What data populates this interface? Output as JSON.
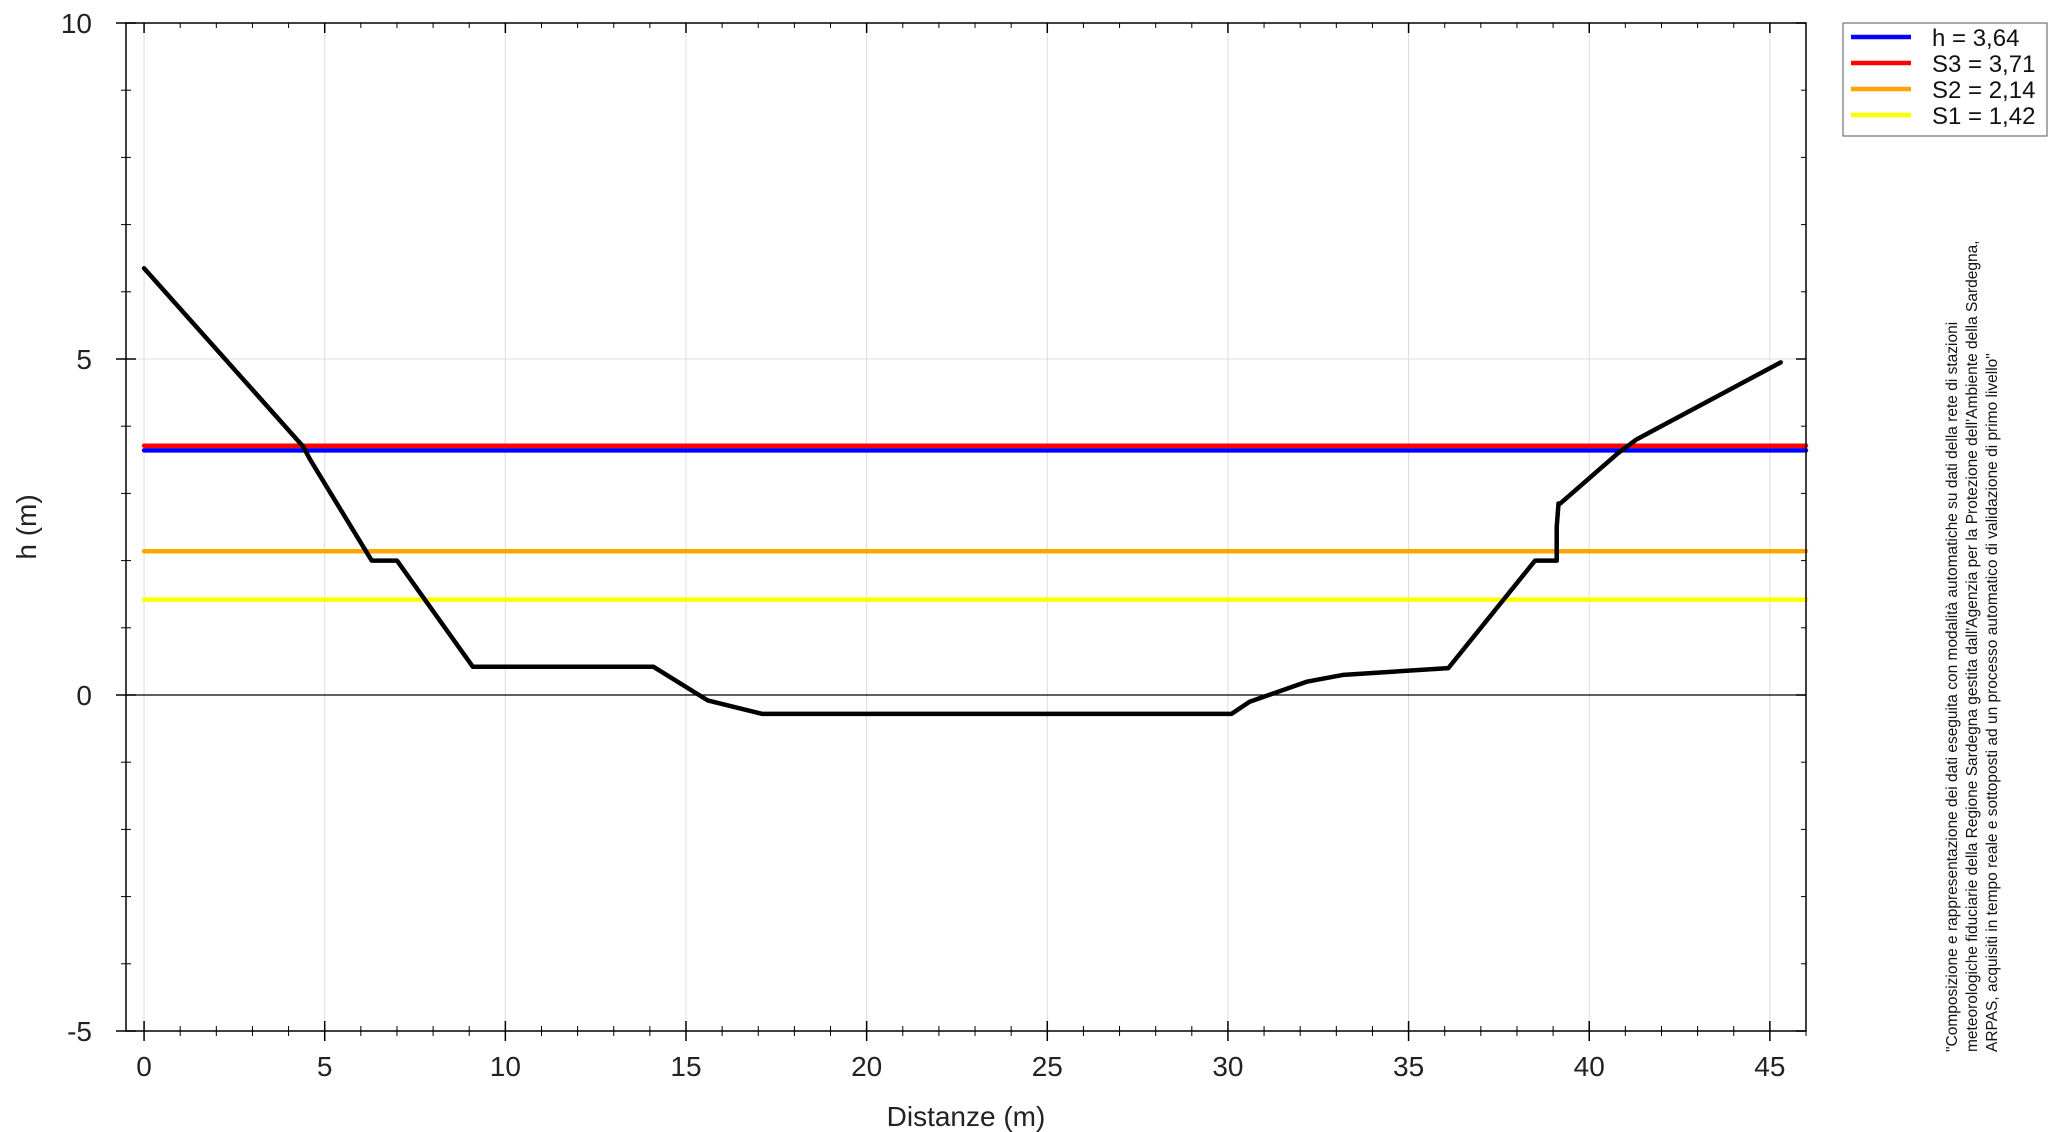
{
  "chart_data": {
    "type": "line",
    "title": "",
    "xlabel": "Distanze (m)",
    "ylabel": "h (m)",
    "xlim": [
      -0.5,
      46
    ],
    "ylim": [
      -5,
      10
    ],
    "x_ticks": [
      0,
      5,
      10,
      15,
      20,
      25,
      30,
      35,
      40,
      45
    ],
    "y_ticks": [
      -5,
      0,
      5,
      10
    ],
    "grid": true,
    "legend_position": "top-right, outside plot",
    "series": [
      {
        "name": "h = 3,64",
        "kind": "horizontal-level",
        "color": "#0000ff",
        "x": [
          0,
          46
        ],
        "y": [
          3.64,
          3.64
        ]
      },
      {
        "name": "S3 = 3,71",
        "kind": "horizontal-level",
        "color": "#ff0000",
        "x": [
          0,
          46
        ],
        "y": [
          3.71,
          3.71
        ]
      },
      {
        "name": "S2 = 2,14",
        "kind": "horizontal-level",
        "color": "#ffa500",
        "x": [
          0,
          46
        ],
        "y": [
          2.14,
          2.14
        ]
      },
      {
        "name": "S1 = 1,42",
        "kind": "horizontal-level",
        "color": "#ffff00",
        "x": [
          0,
          46
        ],
        "y": [
          1.42,
          1.42
        ]
      },
      {
        "kind": "riverbed-profile",
        "color": "#000000",
        "x": [
          0,
          4.4,
          4.6,
          6.3,
          7.0,
          9.1,
          14.1,
          15.6,
          17.1,
          30.1,
          30.6,
          32.2,
          33.2,
          36.1,
          38.5,
          39.1,
          39.1,
          39.15,
          39.2,
          40.8,
          41.3,
          45.3
        ],
        "y": [
          6.35,
          3.7,
          3.5,
          2.0,
          2.0,
          0.42,
          0.42,
          -0.08,
          -0.28,
          -0.28,
          -0.1,
          0.2,
          0.3,
          0.4,
          2.0,
          2.0,
          2.5,
          2.85,
          2.85,
          3.6,
          3.8,
          4.95
        ]
      }
    ],
    "legend": [
      {
        "label": "h = 3,64",
        "color": "#0000ff"
      },
      {
        "label": "S3 = 3,71",
        "color": "#ff0000"
      },
      {
        "label": "S2 = 2,14",
        "color": "#ffa500"
      },
      {
        "label": "S1 = 1,42",
        "color": "#ffff00"
      }
    ],
    "annotation_lines": [
      "\"Composizione e rappresentazione dei dati eseguita con modalità automatiche su dati della rete di stazioni",
      "meteorologiche fiduciarie della Regione Sardegna gestita dall'Agenzia per la Protezione dell'Ambiente della Sardegna,",
      "ARPAS, acquisiti in tempo reale e sottoposti ad un processo automatico di validazione di primo livello\""
    ]
  }
}
